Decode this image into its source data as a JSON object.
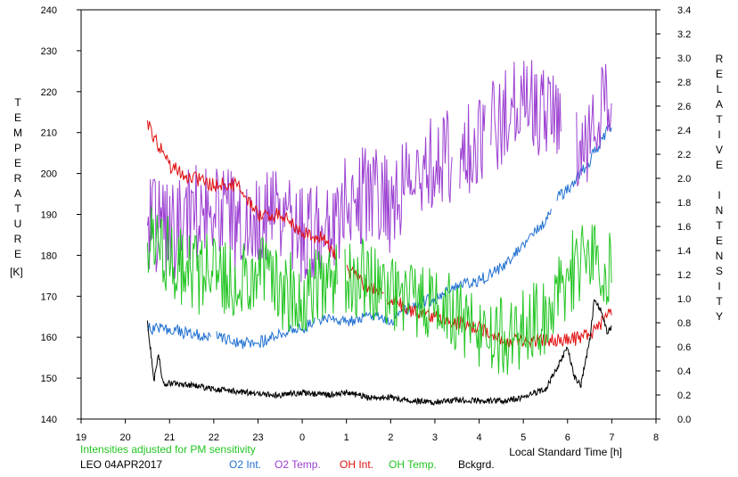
{
  "colors": {
    "o2_int": "#1f6fd1",
    "o2_temp": "#9b3fd1",
    "oh_int": "#e01010",
    "oh_temp": "#22c522",
    "background": "#000000"
  },
  "labels": {
    "left_axis_vertical": "TEMPERATURE",
    "left_unit": "[K]",
    "right_axis_vertical": "RELATIVE INTENSITY",
    "x_label": "Local Standard Time [h]",
    "note": "Intensities adjusted for PM sensitivity",
    "station": "LEO 04APR2017",
    "legend": [
      "O2 Int.",
      "O2 Temp.",
      "OH Int.",
      "OH Temp.",
      "Bckgrd."
    ]
  },
  "chart_data": {
    "type": "line",
    "xlabel": "Local Standard Time [h]",
    "ylabel": "TEMPERATURE [K]",
    "y2label": "RELATIVE INTENSITY",
    "x_ticks": [
      "19",
      "20",
      "21",
      "22",
      "23",
      "0",
      "1",
      "2",
      "3",
      "4",
      "5",
      "6",
      "7",
      "8"
    ],
    "x_range": [
      19,
      32
    ],
    "y_left_range": [
      140,
      240
    ],
    "y_left_ticks": [
      "140",
      "150",
      "160",
      "170",
      "180",
      "190",
      "200",
      "210",
      "220",
      "230",
      "240"
    ],
    "y_right_range": [
      0.0,
      3.4
    ],
    "y_right_ticks": [
      "0.0",
      "0.2",
      "0.4",
      "0.6",
      "0.8",
      "1.0",
      "1.2",
      "1.4",
      "1.6",
      "1.8",
      "2.0",
      "2.2",
      "2.4",
      "2.6",
      "2.8",
      "3.0",
      "3.2",
      "3.4"
    ],
    "grid": false,
    "legend_position": "bottom",
    "series": [
      {
        "name": "O2 Int.",
        "axis": "right",
        "x": [
          20.5,
          21.0,
          21.5,
          22.0,
          22.5,
          23.0,
          23.5,
          24.0,
          24.5,
          25.0,
          25.5,
          26.0,
          26.5,
          27.0,
          27.5,
          28.0,
          28.5,
          29.0,
          29.5,
          29.8,
          30.0,
          30.5,
          31.0
        ],
        "values": [
          0.75,
          0.75,
          0.7,
          0.7,
          0.63,
          0.63,
          0.72,
          0.75,
          0.85,
          0.8,
          0.85,
          0.82,
          0.95,
          1.0,
          1.1,
          1.15,
          1.25,
          1.45,
          1.65,
          1.85,
          1.9,
          2.15,
          2.45
        ]
      },
      {
        "name": "O2 Temp.",
        "axis": "left",
        "x": [
          20.5,
          21.0,
          21.5,
          22.0,
          22.5,
          23.0,
          23.5,
          24.0,
          24.5,
          25.0,
          25.5,
          26.0,
          26.5,
          27.0,
          27.5,
          28.0,
          28.5,
          29.0,
          29.5,
          30.0,
          30.5,
          31.0
        ],
        "values": [
          188,
          185,
          190,
          193,
          188,
          188,
          192,
          185,
          185,
          193,
          195,
          192,
          200,
          203,
          205,
          207,
          213,
          218,
          215,
          207,
          210,
          222
        ]
      },
      {
        "name": "OH Int.",
        "axis": "right",
        "x": [
          20.5,
          21.0,
          21.5,
          22.0,
          22.5,
          23.0,
          23.5,
          24.0,
          24.5,
          25.0,
          25.5,
          26.0,
          26.5,
          27.0,
          27.5,
          28.0,
          28.5,
          29.0,
          29.5,
          30.0,
          30.5,
          31.0
        ],
        "values": [
          2.45,
          2.1,
          2.0,
          1.95,
          1.95,
          1.7,
          1.7,
          1.55,
          1.5,
          1.25,
          1.1,
          1.0,
          0.9,
          0.85,
          0.8,
          0.75,
          0.65,
          0.65,
          0.65,
          0.65,
          0.7,
          0.9
        ]
      },
      {
        "name": "OH Temp.",
        "axis": "left",
        "x": [
          20.5,
          21.0,
          21.5,
          22.0,
          22.5,
          23.0,
          23.5,
          24.0,
          24.5,
          25.0,
          25.5,
          26.0,
          26.5,
          27.0,
          27.5,
          28.0,
          28.5,
          29.0,
          29.5,
          30.0,
          30.5,
          31.0
        ],
        "values": [
          186,
          180,
          175,
          176,
          174,
          175,
          172,
          170,
          175,
          174,
          175,
          172,
          168,
          167,
          166,
          162,
          160,
          162,
          165,
          175,
          180,
          175
        ]
      },
      {
        "name": "Bckgrd.",
        "axis": "right",
        "x": [
          20.5,
          20.65,
          20.75,
          20.85,
          21.0,
          21.5,
          22.0,
          22.5,
          23.0,
          23.5,
          24.0,
          24.5,
          25.0,
          25.5,
          26.0,
          26.5,
          27.0,
          27.5,
          28.0,
          28.5,
          29.0,
          29.5,
          29.8,
          30.0,
          30.15,
          30.3,
          30.5,
          30.6,
          30.75,
          30.9,
          31.0
        ],
        "values": [
          0.8,
          0.32,
          0.55,
          0.3,
          0.3,
          0.28,
          0.25,
          0.23,
          0.21,
          0.2,
          0.22,
          0.2,
          0.22,
          0.18,
          0.18,
          0.15,
          0.14,
          0.16,
          0.15,
          0.15,
          0.18,
          0.25,
          0.45,
          0.6,
          0.35,
          0.28,
          0.65,
          0.98,
          0.92,
          0.72,
          0.76
        ]
      }
    ]
  }
}
